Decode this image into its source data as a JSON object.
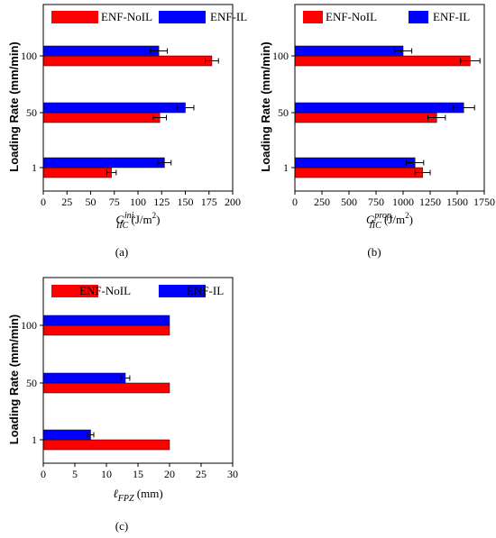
{
  "colors": {
    "noil": "#ff0000",
    "il": "#0000ff"
  },
  "chart_data": [
    {
      "type": "bar",
      "orientation": "horizontal",
      "panel_label": "(a)",
      "categories": [
        "1",
        "50",
        "100"
      ],
      "series": [
        {
          "name": "ENF-NoIL",
          "values": [
            72,
            123,
            178
          ],
          "errors": [
            5,
            7,
            7
          ]
        },
        {
          "name": "ENF-IL",
          "values": [
            128,
            150,
            122
          ],
          "errors": [
            7,
            9,
            9
          ]
        }
      ],
      "xlabel": {
        "main": "G",
        "sub": "IIC",
        "sup": "ini.",
        "unit": "(J/m",
        "unit_sup": "2",
        "unit_end": ")"
      },
      "ylabel": "Loading Rate (mm/min)",
      "xlim": [
        0,
        200
      ],
      "xticks": [
        "0",
        "25",
        "50",
        "75",
        "100",
        "125",
        "150",
        "175",
        "200"
      ],
      "legend": "top"
    },
    {
      "type": "bar",
      "orientation": "horizontal",
      "panel_label": "(b)",
      "categories": [
        "1",
        "50",
        "100"
      ],
      "series": [
        {
          "name": "ENF-NoIL",
          "values": [
            1180,
            1310,
            1620
          ],
          "errors": [
            70,
            80,
            90
          ]
        },
        {
          "name": "ENF-IL",
          "values": [
            1110,
            1560,
            1000
          ],
          "errors": [
            80,
            100,
            80
          ]
        }
      ],
      "xlabel": {
        "main": "G",
        "sub": "IIC",
        "sup": "prop.",
        "unit": "(J/m",
        "unit_sup": "2",
        "unit_end": ")"
      },
      "ylabel": "Loading Rate (mm/min)",
      "xlim": [
        0,
        1750
      ],
      "xticks": [
        "0",
        "250",
        "500",
        "750",
        "1000",
        "1250",
        "1500",
        "1750"
      ],
      "legend": "top"
    },
    {
      "type": "bar",
      "orientation": "horizontal",
      "panel_label": "(c)",
      "categories": [
        "1",
        "50",
        "100"
      ],
      "series": [
        {
          "name": "ENF-NoIL",
          "values": [
            20,
            20,
            20
          ],
          "errors": [
            0,
            0,
            0
          ]
        },
        {
          "name": "ENF-IL",
          "values": [
            7.5,
            13,
            20
          ],
          "errors": [
            0.5,
            0.7,
            0
          ]
        }
      ],
      "xlabel": {
        "main": "ℓ",
        "sub": "FPZ",
        "sup": "",
        "unit": "(mm)",
        "unit_sup": "",
        "unit_end": ""
      },
      "ylabel": "Loading Rate (mm/min)",
      "xlim": [
        0,
        30
      ],
      "xticks": [
        "0",
        "5",
        "10",
        "15",
        "20",
        "25",
        "30"
      ],
      "legend": "top"
    }
  ]
}
